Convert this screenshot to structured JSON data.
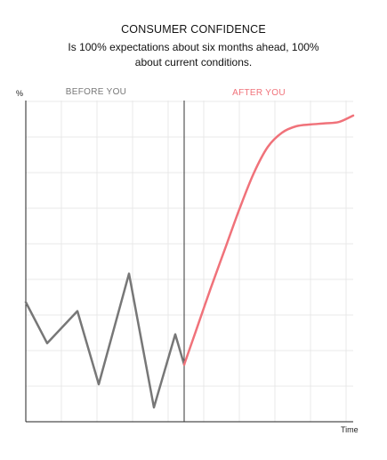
{
  "chart_data": {
    "type": "line",
    "title": "CONSUMER CONFIDENCE",
    "subtitle": "Is 100% expectations about six months ahead, 100% about current conditions.",
    "ylabel": "%",
    "xlabel": "Time",
    "ylim": [
      0,
      9
    ],
    "xlim": [
      0,
      9.2
    ],
    "grid": true,
    "divider_x": 4.45,
    "regions": [
      {
        "label": "BEFORE YOU",
        "color": "#777777"
      },
      {
        "label": "AFTER YOU",
        "color": "#f0727a"
      }
    ],
    "series": [
      {
        "color": "#777777",
        "points": [
          [
            0,
            3.35
          ],
          [
            0.6,
            2.2
          ],
          [
            1.45,
            3.1
          ],
          [
            2.05,
            1.05
          ],
          [
            2.9,
            4.15
          ],
          [
            3.6,
            0.4
          ],
          [
            4.2,
            2.45
          ],
          [
            4.45,
            1.6
          ]
        ]
      },
      {
        "color": "#f0727a",
        "points": [
          [
            4.45,
            1.6
          ],
          [
            4.8,
            2.6
          ],
          [
            5.2,
            3.75
          ],
          [
            5.6,
            4.85
          ],
          [
            6.0,
            5.95
          ],
          [
            6.4,
            6.95
          ],
          [
            6.8,
            7.7
          ],
          [
            7.2,
            8.1
          ],
          [
            7.6,
            8.28
          ],
          [
            8.0,
            8.33
          ],
          [
            8.4,
            8.36
          ],
          [
            8.8,
            8.4
          ],
          [
            9.2,
            8.58
          ]
        ]
      }
    ]
  }
}
